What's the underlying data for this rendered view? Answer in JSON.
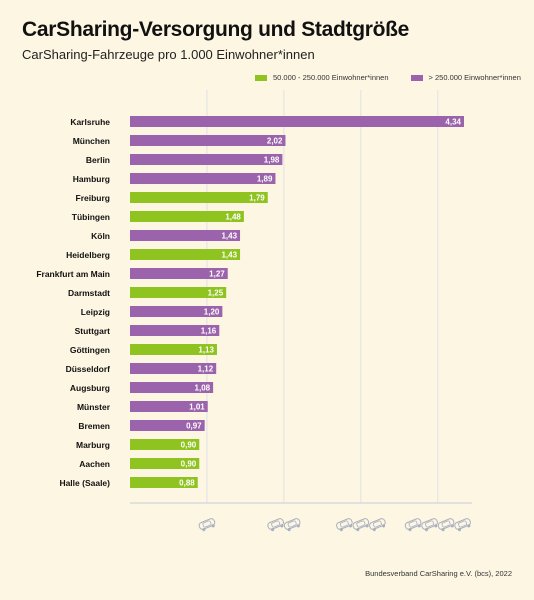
{
  "title": "CarSharing-Versorgung und Stadtgröße",
  "subtitle": "CarSharing-Fahrzeuge pro 1.000 Einwohner*innen",
  "source": "Bundesverband CarSharing e.V. (bcs), 2022",
  "colors": {
    "small": "#8fc31f",
    "large": "#9b63ab",
    "background": "#fdf6e3",
    "grid": "#d9dce8"
  },
  "legend": [
    {
      "label": "50.000 - 250.000 Einwohner*innen",
      "color": "#8fc31f"
    },
    {
      "label": "> 250.000 Einwohner*innen",
      "color": "#9b63ab"
    }
  ],
  "chart_data": {
    "type": "bar",
    "orientation": "horizontal",
    "xlim": [
      0,
      4.5
    ],
    "grid": true,
    "legend_position": "top-right",
    "axis_icons": [
      "car-icon",
      "car-icon",
      "car-icon",
      "car-icon"
    ],
    "categories": [
      "Karlsruhe",
      "München",
      "Berlin",
      "Hamburg",
      "Freiburg",
      "Tübingen",
      "Köln",
      "Heidelberg",
      "Frankfurt am Main",
      "Darmstadt",
      "Leipzig",
      "Stuttgart",
      "Göttingen",
      "Düsseldorf",
      "Augsburg",
      "Münster",
      "Bremen",
      "Marburg",
      "Aachen",
      "Halle (Saale)"
    ],
    "values": [
      4.34,
      2.02,
      1.98,
      1.89,
      1.79,
      1.48,
      1.43,
      1.43,
      1.27,
      1.25,
      1.2,
      1.16,
      1.13,
      1.12,
      1.08,
      1.01,
      0.97,
      0.9,
      0.9,
      0.88
    ],
    "labels": [
      "4,34",
      "2,02",
      "1,98",
      "1,89",
      "1,79",
      "1,48",
      "1,43",
      "1,43",
      "1,27",
      "1,25",
      "1,20",
      "1,16",
      "1,13",
      "1,12",
      "1,08",
      "1,01",
      "0,97",
      "0,90",
      "0,90",
      "0,88"
    ],
    "group": [
      "large",
      "large",
      "large",
      "large",
      "small",
      "small",
      "large",
      "small",
      "large",
      "small",
      "large",
      "large",
      "small",
      "large",
      "large",
      "large",
      "large",
      "small",
      "small",
      "small"
    ]
  }
}
